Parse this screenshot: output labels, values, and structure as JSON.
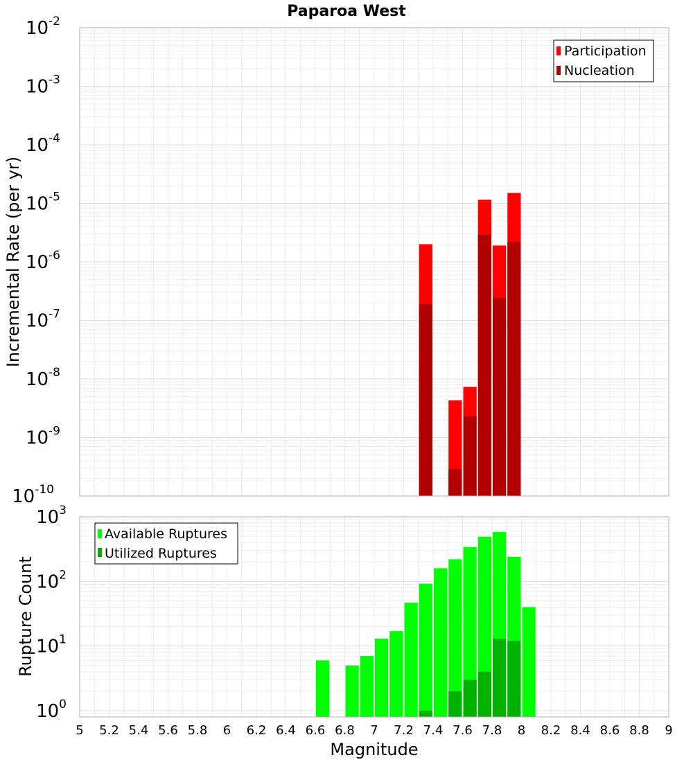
{
  "chart_data": [
    {
      "type": "bar",
      "title": "Paparoa West",
      "xlabel": "",
      "ylabel": "Incremental Rate (per yr)",
      "yscale": "log",
      "ylim": [
        1e-10,
        0.01
      ],
      "xlim": [
        5,
        9
      ],
      "ytick_exponents": [
        -10,
        -9,
        -8,
        -7,
        -6,
        -5,
        -4,
        -3,
        -2
      ],
      "legend_position": "top-right",
      "grid": true,
      "bin_width": 0.1,
      "series": [
        {
          "name": "Participation",
          "color": "#ff0000",
          "x": [
            7.35,
            7.55,
            7.65,
            7.75,
            7.85,
            7.95
          ],
          "values": [
            2e-06,
            4.3e-09,
            7.3e-09,
            1.15e-05,
            1.9e-06,
            1.5e-05
          ]
        },
        {
          "name": "Nucleation",
          "color": "#b20000",
          "x": [
            7.35,
            7.55,
            7.65,
            7.75,
            7.85,
            7.95
          ],
          "values": [
            1.9e-07,
            2.9e-10,
            2.3e-09,
            2.9e-06,
            2.4e-07,
            2.2e-06
          ]
        }
      ]
    },
    {
      "type": "bar",
      "title": "",
      "xlabel": "Magnitude",
      "ylabel": "Rupture Count",
      "yscale": "log",
      "ylim": [
        0.8,
        1000
      ],
      "xlim": [
        5,
        9
      ],
      "ytick_exponents": [
        0,
        1,
        2,
        3
      ],
      "legend_position": "top-left",
      "grid": true,
      "bin_width": 0.1,
      "x_ticks": [
        "5",
        "5.2",
        "5.4",
        "5.6",
        "5.8",
        "6",
        "6.2",
        "6.4",
        "6.6",
        "6.8",
        "7",
        "7.2",
        "7.4",
        "7.6",
        "7.8",
        "8",
        "8.2",
        "8.4",
        "8.6",
        "8.8",
        "9"
      ],
      "series": [
        {
          "name": "Available Ruptures",
          "color": "#00ff00",
          "x": [
            6.65,
            6.85,
            6.95,
            7.05,
            7.15,
            7.25,
            7.35,
            7.45,
            7.55,
            7.65,
            7.75,
            7.85,
            7.95,
            8.05
          ],
          "values": [
            6,
            5,
            7,
            13,
            17,
            47,
            92,
            160,
            220,
            340,
            490,
            580,
            240,
            40
          ]
        },
        {
          "name": "Utilized Ruptures",
          "color": "#00b200",
          "x": [
            7.35,
            7.55,
            7.65,
            7.75,
            7.85,
            7.95
          ],
          "values": [
            1,
            2,
            3,
            4,
            13,
            12
          ]
        }
      ]
    }
  ]
}
